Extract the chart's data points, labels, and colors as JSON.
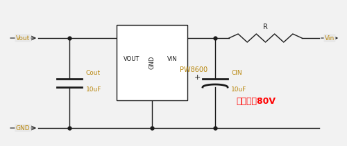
{
  "background_color": "#f2f2f2",
  "line_color": "#1a1a1a",
  "label_color": "#b8860b",
  "red_text_color": "#ff0000",
  "vout_label": "Vout",
  "vin_label": "Vin",
  "gnd_label": "GND",
  "cout_label": "Cout",
  "cout_value": "10uF",
  "cin_label": "CIN",
  "cin_value": "10uF",
  "r_label": "R",
  "ic_label_vout": "VOUT",
  "ic_label_vin": "VIN",
  "ic_label_gnd": "GND",
  "ic_name": "PW8600",
  "red_annotation": "最高输入80V",
  "label_bg": "#e8e8e8"
}
